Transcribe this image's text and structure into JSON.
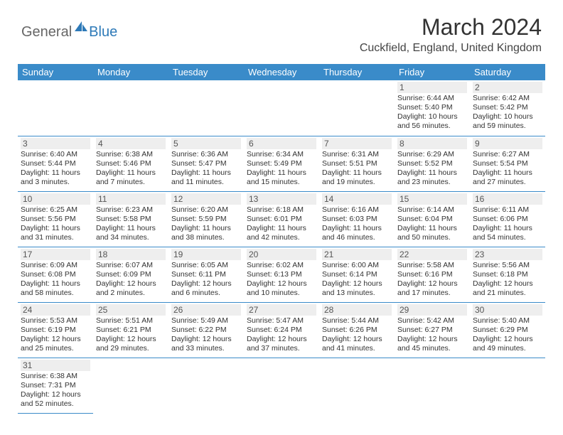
{
  "logo": {
    "general": "General",
    "blue": "Blue"
  },
  "title": "March 2024",
  "location": "Cuckfield, England, United Kingdom",
  "colors": {
    "header_bg": "#3a8bc9",
    "header_text": "#ffffff",
    "border": "#3a8bc9",
    "daynum_bg": "#eeeeee",
    "text": "#333333",
    "logo_gray": "#666666",
    "logo_blue": "#2e7ab8"
  },
  "dayHeaders": [
    "Sunday",
    "Monday",
    "Tuesday",
    "Wednesday",
    "Thursday",
    "Friday",
    "Saturday"
  ],
  "weeks": [
    [
      null,
      null,
      null,
      null,
      null,
      {
        "n": "1",
        "sunrise": "Sunrise: 6:44 AM",
        "sunset": "Sunset: 5:40 PM",
        "daylight": "Daylight: 10 hours and 56 minutes."
      },
      {
        "n": "2",
        "sunrise": "Sunrise: 6:42 AM",
        "sunset": "Sunset: 5:42 PM",
        "daylight": "Daylight: 10 hours and 59 minutes."
      }
    ],
    [
      {
        "n": "3",
        "sunrise": "Sunrise: 6:40 AM",
        "sunset": "Sunset: 5:44 PM",
        "daylight": "Daylight: 11 hours and 3 minutes."
      },
      {
        "n": "4",
        "sunrise": "Sunrise: 6:38 AM",
        "sunset": "Sunset: 5:46 PM",
        "daylight": "Daylight: 11 hours and 7 minutes."
      },
      {
        "n": "5",
        "sunrise": "Sunrise: 6:36 AM",
        "sunset": "Sunset: 5:47 PM",
        "daylight": "Daylight: 11 hours and 11 minutes."
      },
      {
        "n": "6",
        "sunrise": "Sunrise: 6:34 AM",
        "sunset": "Sunset: 5:49 PM",
        "daylight": "Daylight: 11 hours and 15 minutes."
      },
      {
        "n": "7",
        "sunrise": "Sunrise: 6:31 AM",
        "sunset": "Sunset: 5:51 PM",
        "daylight": "Daylight: 11 hours and 19 minutes."
      },
      {
        "n": "8",
        "sunrise": "Sunrise: 6:29 AM",
        "sunset": "Sunset: 5:52 PM",
        "daylight": "Daylight: 11 hours and 23 minutes."
      },
      {
        "n": "9",
        "sunrise": "Sunrise: 6:27 AM",
        "sunset": "Sunset: 5:54 PM",
        "daylight": "Daylight: 11 hours and 27 minutes."
      }
    ],
    [
      {
        "n": "10",
        "sunrise": "Sunrise: 6:25 AM",
        "sunset": "Sunset: 5:56 PM",
        "daylight": "Daylight: 11 hours and 31 minutes."
      },
      {
        "n": "11",
        "sunrise": "Sunrise: 6:23 AM",
        "sunset": "Sunset: 5:58 PM",
        "daylight": "Daylight: 11 hours and 34 minutes."
      },
      {
        "n": "12",
        "sunrise": "Sunrise: 6:20 AM",
        "sunset": "Sunset: 5:59 PM",
        "daylight": "Daylight: 11 hours and 38 minutes."
      },
      {
        "n": "13",
        "sunrise": "Sunrise: 6:18 AM",
        "sunset": "Sunset: 6:01 PM",
        "daylight": "Daylight: 11 hours and 42 minutes."
      },
      {
        "n": "14",
        "sunrise": "Sunrise: 6:16 AM",
        "sunset": "Sunset: 6:03 PM",
        "daylight": "Daylight: 11 hours and 46 minutes."
      },
      {
        "n": "15",
        "sunrise": "Sunrise: 6:14 AM",
        "sunset": "Sunset: 6:04 PM",
        "daylight": "Daylight: 11 hours and 50 minutes."
      },
      {
        "n": "16",
        "sunrise": "Sunrise: 6:11 AM",
        "sunset": "Sunset: 6:06 PM",
        "daylight": "Daylight: 11 hours and 54 minutes."
      }
    ],
    [
      {
        "n": "17",
        "sunrise": "Sunrise: 6:09 AM",
        "sunset": "Sunset: 6:08 PM",
        "daylight": "Daylight: 11 hours and 58 minutes."
      },
      {
        "n": "18",
        "sunrise": "Sunrise: 6:07 AM",
        "sunset": "Sunset: 6:09 PM",
        "daylight": "Daylight: 12 hours and 2 minutes."
      },
      {
        "n": "19",
        "sunrise": "Sunrise: 6:05 AM",
        "sunset": "Sunset: 6:11 PM",
        "daylight": "Daylight: 12 hours and 6 minutes."
      },
      {
        "n": "20",
        "sunrise": "Sunrise: 6:02 AM",
        "sunset": "Sunset: 6:13 PM",
        "daylight": "Daylight: 12 hours and 10 minutes."
      },
      {
        "n": "21",
        "sunrise": "Sunrise: 6:00 AM",
        "sunset": "Sunset: 6:14 PM",
        "daylight": "Daylight: 12 hours and 13 minutes."
      },
      {
        "n": "22",
        "sunrise": "Sunrise: 5:58 AM",
        "sunset": "Sunset: 6:16 PM",
        "daylight": "Daylight: 12 hours and 17 minutes."
      },
      {
        "n": "23",
        "sunrise": "Sunrise: 5:56 AM",
        "sunset": "Sunset: 6:18 PM",
        "daylight": "Daylight: 12 hours and 21 minutes."
      }
    ],
    [
      {
        "n": "24",
        "sunrise": "Sunrise: 5:53 AM",
        "sunset": "Sunset: 6:19 PM",
        "daylight": "Daylight: 12 hours and 25 minutes."
      },
      {
        "n": "25",
        "sunrise": "Sunrise: 5:51 AM",
        "sunset": "Sunset: 6:21 PM",
        "daylight": "Daylight: 12 hours and 29 minutes."
      },
      {
        "n": "26",
        "sunrise": "Sunrise: 5:49 AM",
        "sunset": "Sunset: 6:22 PM",
        "daylight": "Daylight: 12 hours and 33 minutes."
      },
      {
        "n": "27",
        "sunrise": "Sunrise: 5:47 AM",
        "sunset": "Sunset: 6:24 PM",
        "daylight": "Daylight: 12 hours and 37 minutes."
      },
      {
        "n": "28",
        "sunrise": "Sunrise: 5:44 AM",
        "sunset": "Sunset: 6:26 PM",
        "daylight": "Daylight: 12 hours and 41 minutes."
      },
      {
        "n": "29",
        "sunrise": "Sunrise: 5:42 AM",
        "sunset": "Sunset: 6:27 PM",
        "daylight": "Daylight: 12 hours and 45 minutes."
      },
      {
        "n": "30",
        "sunrise": "Sunrise: 5:40 AM",
        "sunset": "Sunset: 6:29 PM",
        "daylight": "Daylight: 12 hours and 49 minutes."
      }
    ],
    [
      {
        "n": "31",
        "sunrise": "Sunrise: 6:38 AM",
        "sunset": "Sunset: 7:31 PM",
        "daylight": "Daylight: 12 hours and 52 minutes."
      },
      null,
      null,
      null,
      null,
      null,
      null
    ]
  ]
}
